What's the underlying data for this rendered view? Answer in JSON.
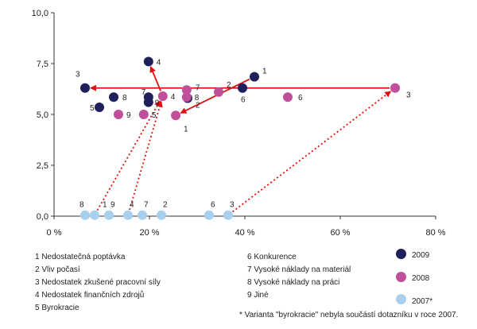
{
  "chart_data": {
    "type": "scatter",
    "title": "",
    "xlabel": "",
    "ylabel": "",
    "xlim": [
      0,
      80
    ],
    "ylim": [
      0,
      10
    ],
    "x_ticks": [
      "0 %",
      "20 %",
      "40 %",
      "60 %",
      "80 %"
    ],
    "y_ticks": [
      "0,0",
      "2,5",
      "5,0",
      "7,5",
      "10,0"
    ],
    "series": [
      {
        "name": "2009",
        "color": "#1f1f5c",
        "points": [
          {
            "label": "1",
            "x": 42,
            "y": 6.85
          },
          {
            "label": "2",
            "x": 28,
            "y": 5.8
          },
          {
            "label": "3",
            "x": 6.5,
            "y": 6.3
          },
          {
            "label": "4",
            "x": 19.8,
            "y": 7.6
          },
          {
            "label": "5",
            "x": 9.5,
            "y": 5.35
          },
          {
            "label": "6",
            "x": 39.5,
            "y": 6.3
          },
          {
            "label": "7",
            "x": 19.8,
            "y": 5.85
          },
          {
            "label": "8",
            "x": 12.5,
            "y": 5.85
          },
          {
            "label": "9",
            "x": 19.8,
            "y": 5.6
          }
        ]
      },
      {
        "name": "2008",
        "color": "#c0509a",
        "points": [
          {
            "label": "1",
            "x": 25.5,
            "y": 4.95
          },
          {
            "label": "2",
            "x": 34.5,
            "y": 6.1
          },
          {
            "label": "3",
            "x": 71.5,
            "y": 6.3
          },
          {
            "label": "4",
            "x": 22.8,
            "y": 5.9
          },
          {
            "label": "5",
            "x": 18.8,
            "y": 5.0
          },
          {
            "label": "6",
            "x": 49,
            "y": 5.85
          },
          {
            "label": "7",
            "x": 27.8,
            "y": 6.2
          },
          {
            "label": "8",
            "x": 27.8,
            "y": 5.85
          },
          {
            "label": "9",
            "x": 13.5,
            "y": 5.0
          }
        ]
      },
      {
        "name": "2007*",
        "color": "#a8d0ee",
        "points": [
          {
            "label": "1",
            "x": 8.5,
            "y": 0.05
          },
          {
            "label": "2",
            "x": 22.5,
            "y": 0.05
          },
          {
            "label": "3",
            "x": 36.5,
            "y": 0.05
          },
          {
            "label": "4",
            "x": 15.5,
            "y": 0.05
          },
          {
            "label": "6",
            "x": 32.5,
            "y": 0.05
          },
          {
            "label": "7",
            "x": 18.5,
            "y": 0.05
          },
          {
            "label": "8",
            "x": 6.5,
            "y": 0.05
          },
          {
            "label": "9",
            "x": 11.5,
            "y": 0.05
          }
        ]
      }
    ],
    "arrows_solid": [
      {
        "from": [
          71.5,
          6.3
        ],
        "to": [
          6.5,
          6.3
        ]
      },
      {
        "from": [
          42,
          6.85
        ],
        "to": [
          25.5,
          4.95
        ]
      },
      {
        "from": [
          22.8,
          5.9
        ],
        "to": [
          19.8,
          7.6
        ]
      }
    ],
    "arrows_dotted": [
      {
        "from": [
          36.5,
          0.05
        ],
        "to": [
          71.5,
          6.3
        ]
      },
      {
        "from": [
          8.5,
          0.05
        ],
        "to": [
          22.8,
          5.9
        ]
      },
      {
        "from": [
          15.5,
          0.05
        ],
        "to": [
          22.8,
          5.9
        ]
      }
    ],
    "grid": false,
    "legend_position": "bottom-right"
  },
  "legend_items": {
    "left": [
      "1 Nedostatečná poptávka",
      "2 Vliv počasí",
      "3 Nedostatek zkušené pracovní síly",
      "4 Nedostatek finančních zdrojů",
      "5 Byrokracie"
    ],
    "right": [
      "6 Konkurence",
      "7 Vysoké náklady na materiál",
      "8 Vysoké náklady na práci",
      "9 Jiné"
    ]
  },
  "series_legend": [
    "2009",
    "2008",
    "2007*"
  ],
  "footnote": "* Varianta \"byrokracie\" nebyla součástí dotazníku v roce 2007."
}
